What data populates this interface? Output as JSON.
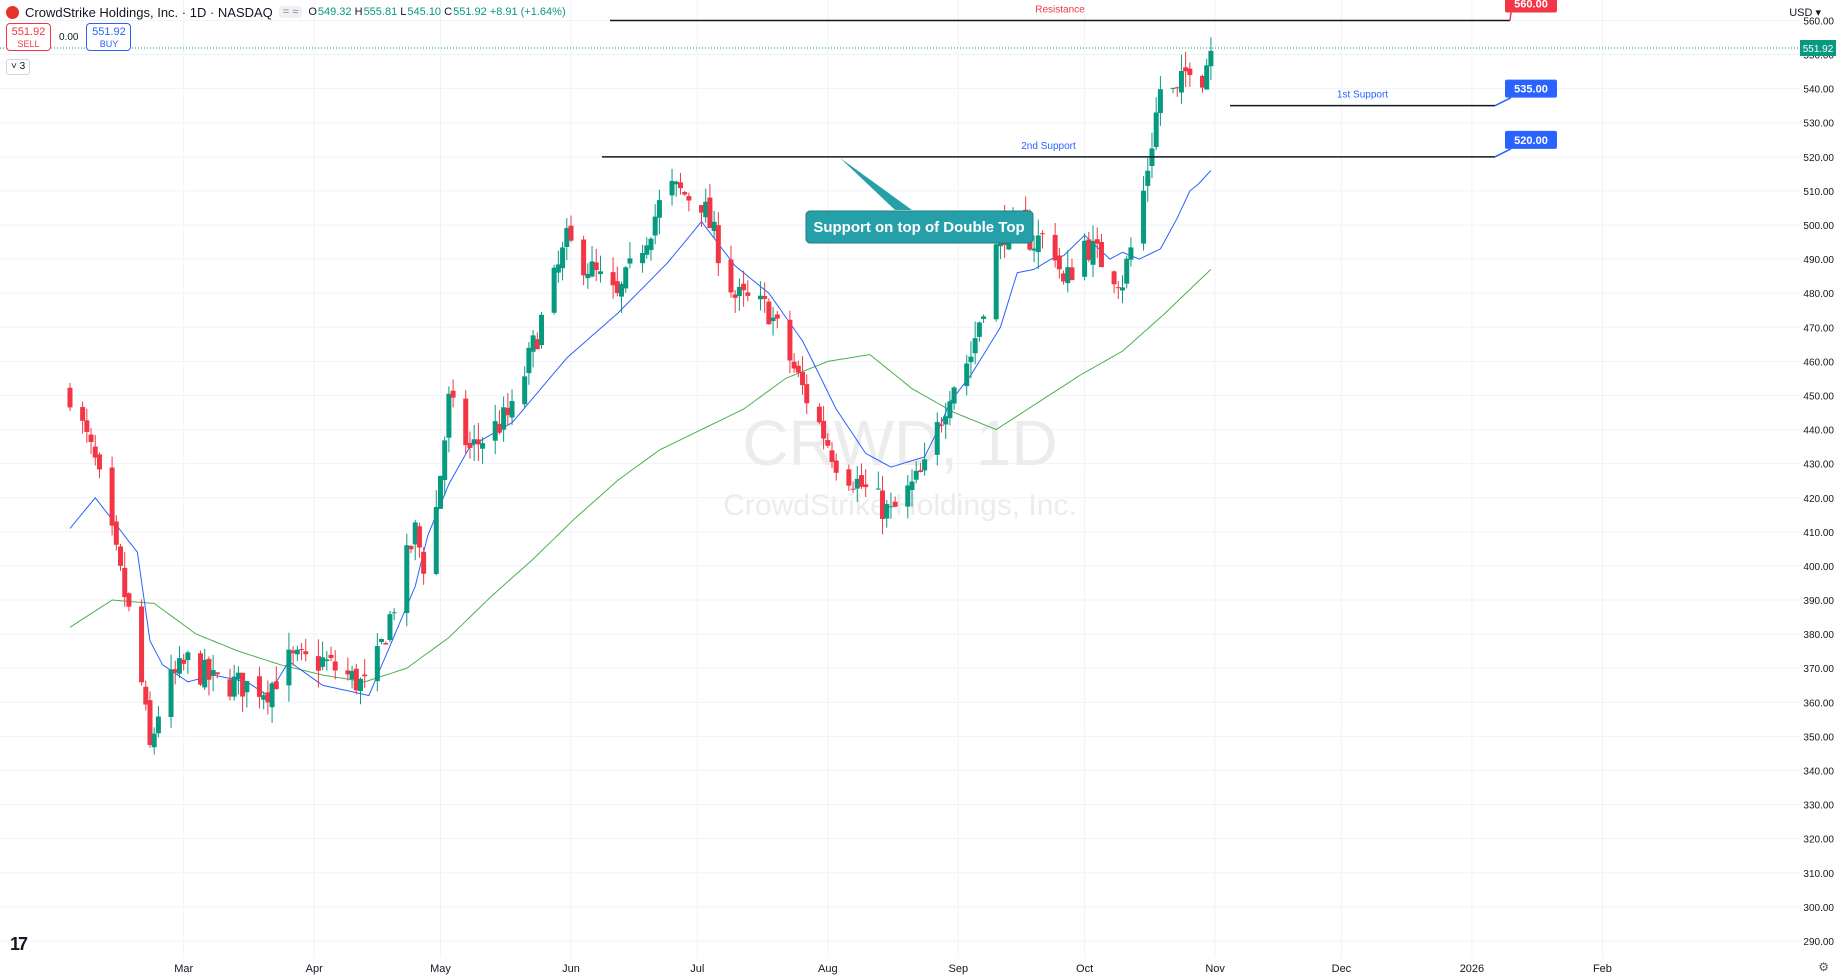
{
  "header": {
    "title": "CrowdStrike Holdings, Inc. · 1D · NASDAQ",
    "pill_text": "= ≈",
    "ohlc": [
      {
        "k": "O",
        "v": "549.32"
      },
      {
        "k": "H",
        "v": "555.81"
      },
      {
        "k": "L",
        "v": "545.10"
      },
      {
        "k": "C",
        "v": "551.92 +8.91 (+1.64%)"
      }
    ]
  },
  "trade": {
    "sell_price": "551.92",
    "sell_label": "SELL",
    "spread": "0.00",
    "buy_price": "551.92",
    "buy_label": "BUY"
  },
  "collapse_label": "3",
  "currency": "USD",
  "watermark": {
    "ticker": "CRWD, 1D",
    "name": "CrowdStrike Holdings, Inc."
  },
  "colors": {
    "up": "#089981",
    "down": "#f23645",
    "ma_fast": "#2962ff",
    "ma_slow": "#4caf50",
    "accent_blue": "#2962ff",
    "annotation": "#26a0a8"
  },
  "chart_data": {
    "type": "candlestick",
    "ylim": [
      285,
      566
    ],
    "y_ticks": [
      290,
      300,
      310,
      320,
      330,
      340,
      350,
      360,
      370,
      380,
      390,
      400,
      410,
      420,
      430,
      440,
      450,
      460,
      470,
      480,
      490,
      500,
      510,
      520,
      530,
      540,
      550,
      560
    ],
    "x_tick_labels": [
      "Mar",
      "Apr",
      "May",
      "Jun",
      "Jul",
      "Aug",
      "Sep",
      "Oct",
      "Nov",
      "Dec",
      "2026",
      "Feb"
    ],
    "x_tick_days": [
      27,
      58,
      88,
      119,
      149,
      180,
      211,
      241,
      272,
      302,
      333,
      364
    ],
    "x_axis_start": "2025-02-01",
    "last_price": 551.92,
    "candles_anchor_days": [
      0,
      6,
      16,
      19,
      22,
      28,
      34,
      42,
      47,
      52,
      60,
      71,
      82,
      85,
      90,
      95,
      105,
      118,
      130,
      142,
      150,
      158,
      166,
      174,
      182,
      189,
      195,
      203,
      207,
      209,
      214,
      221,
      225,
      229,
      233,
      236,
      241,
      247,
      250,
      254,
      259,
      263,
      266,
      268,
      271
    ],
    "candles_anchor_close": [
      451,
      430,
      375,
      346,
      363,
      372,
      366,
      365,
      364,
      372,
      372,
      364,
      410,
      396,
      448,
      434,
      445,
      495,
      478,
      511,
      507,
      479,
      475,
      452,
      431,
      422,
      415,
      428,
      444,
      452,
      462,
      498,
      500,
      495,
      498,
      482,
      495,
      487,
      484,
      502,
      540,
      538,
      548,
      540,
      552
    ],
    "ma_fast_anchor_days": [
      0,
      6,
      16,
      19,
      22,
      28,
      34,
      42,
      47,
      52,
      60,
      71,
      82,
      85,
      90,
      95,
      105,
      118,
      130,
      142,
      150,
      158,
      166,
      174,
      182,
      189,
      195,
      203,
      207,
      209,
      214,
      221,
      225,
      229,
      233,
      236,
      241,
      247,
      250,
      254,
      259,
      263,
      266,
      268,
      271
    ],
    "ma_fast_anchor_values": [
      411,
      420,
      404,
      378,
      371,
      366,
      368,
      366,
      362,
      372,
      365,
      362,
      394,
      409,
      424,
      435,
      442,
      461,
      474,
      489,
      501,
      488,
      480,
      466,
      446,
      433,
      429,
      432,
      442,
      448,
      456,
      470,
      486,
      487,
      490,
      491,
      497,
      490,
      492,
      490,
      493,
      502,
      510,
      512,
      516
    ],
    "ma_slow_anchor_days": [
      0,
      10,
      20,
      30,
      40,
      50,
      60,
      70,
      80,
      90,
      100,
      110,
      120,
      130,
      140,
      150,
      160,
      170,
      180,
      190,
      200,
      210,
      220,
      230,
      240,
      250,
      260,
      271
    ],
    "ma_slow_anchor_values": [
      382,
      390,
      389,
      380,
      375,
      371,
      368,
      366,
      370,
      379,
      391,
      402,
      414,
      425,
      434,
      440,
      446,
      455,
      460,
      462,
      452,
      445,
      440,
      448,
      456,
      463,
      474,
      487
    ],
    "annotations": [
      {
        "type": "horizontal_line",
        "label": "Resistance",
        "price_label": "560.00",
        "value": 560
      },
      {
        "type": "horizontal_line",
        "label": "1st Support",
        "price_label": "535.00",
        "value": 535
      },
      {
        "type": "horizontal_line",
        "label": "2nd Support",
        "price_label": "520.00",
        "value": 520
      },
      {
        "type": "callout",
        "text": "Support on top of Double Top"
      }
    ]
  }
}
